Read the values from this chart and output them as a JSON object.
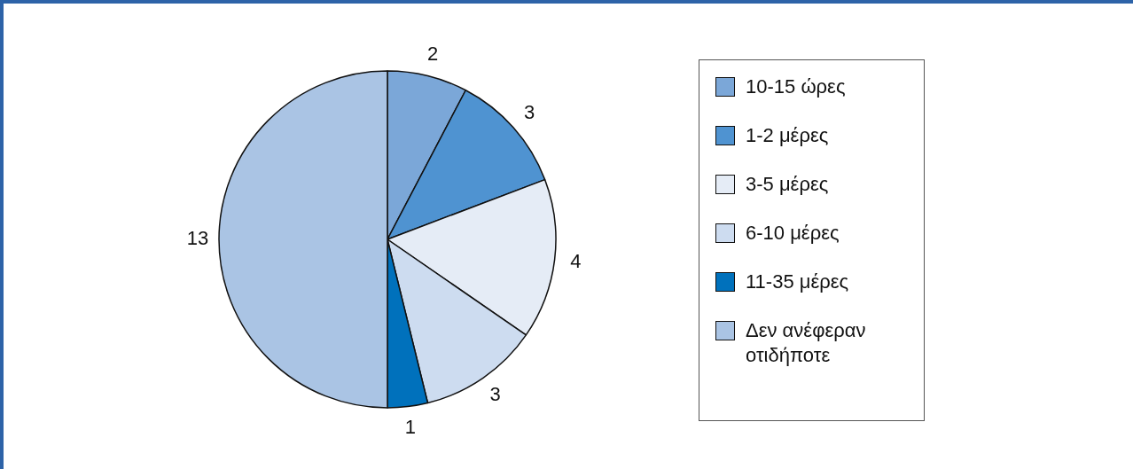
{
  "chart_data": {
    "type": "pie",
    "categories": [
      "10-15 ώρες",
      "1-2 μέρες",
      "3-5 μέρες",
      "6-10 μέρες",
      "11-35 μέρες",
      "Δεν ανέφεραν οτιδήποτε"
    ],
    "values": [
      2,
      3,
      4,
      3,
      1,
      13
    ],
    "colors": [
      "#7ba7d8",
      "#4f93d1",
      "#e5ecf6",
      "#cddcf0",
      "#0071bc",
      "#aac4e4"
    ],
    "data_labels": true,
    "legend": "right"
  }
}
